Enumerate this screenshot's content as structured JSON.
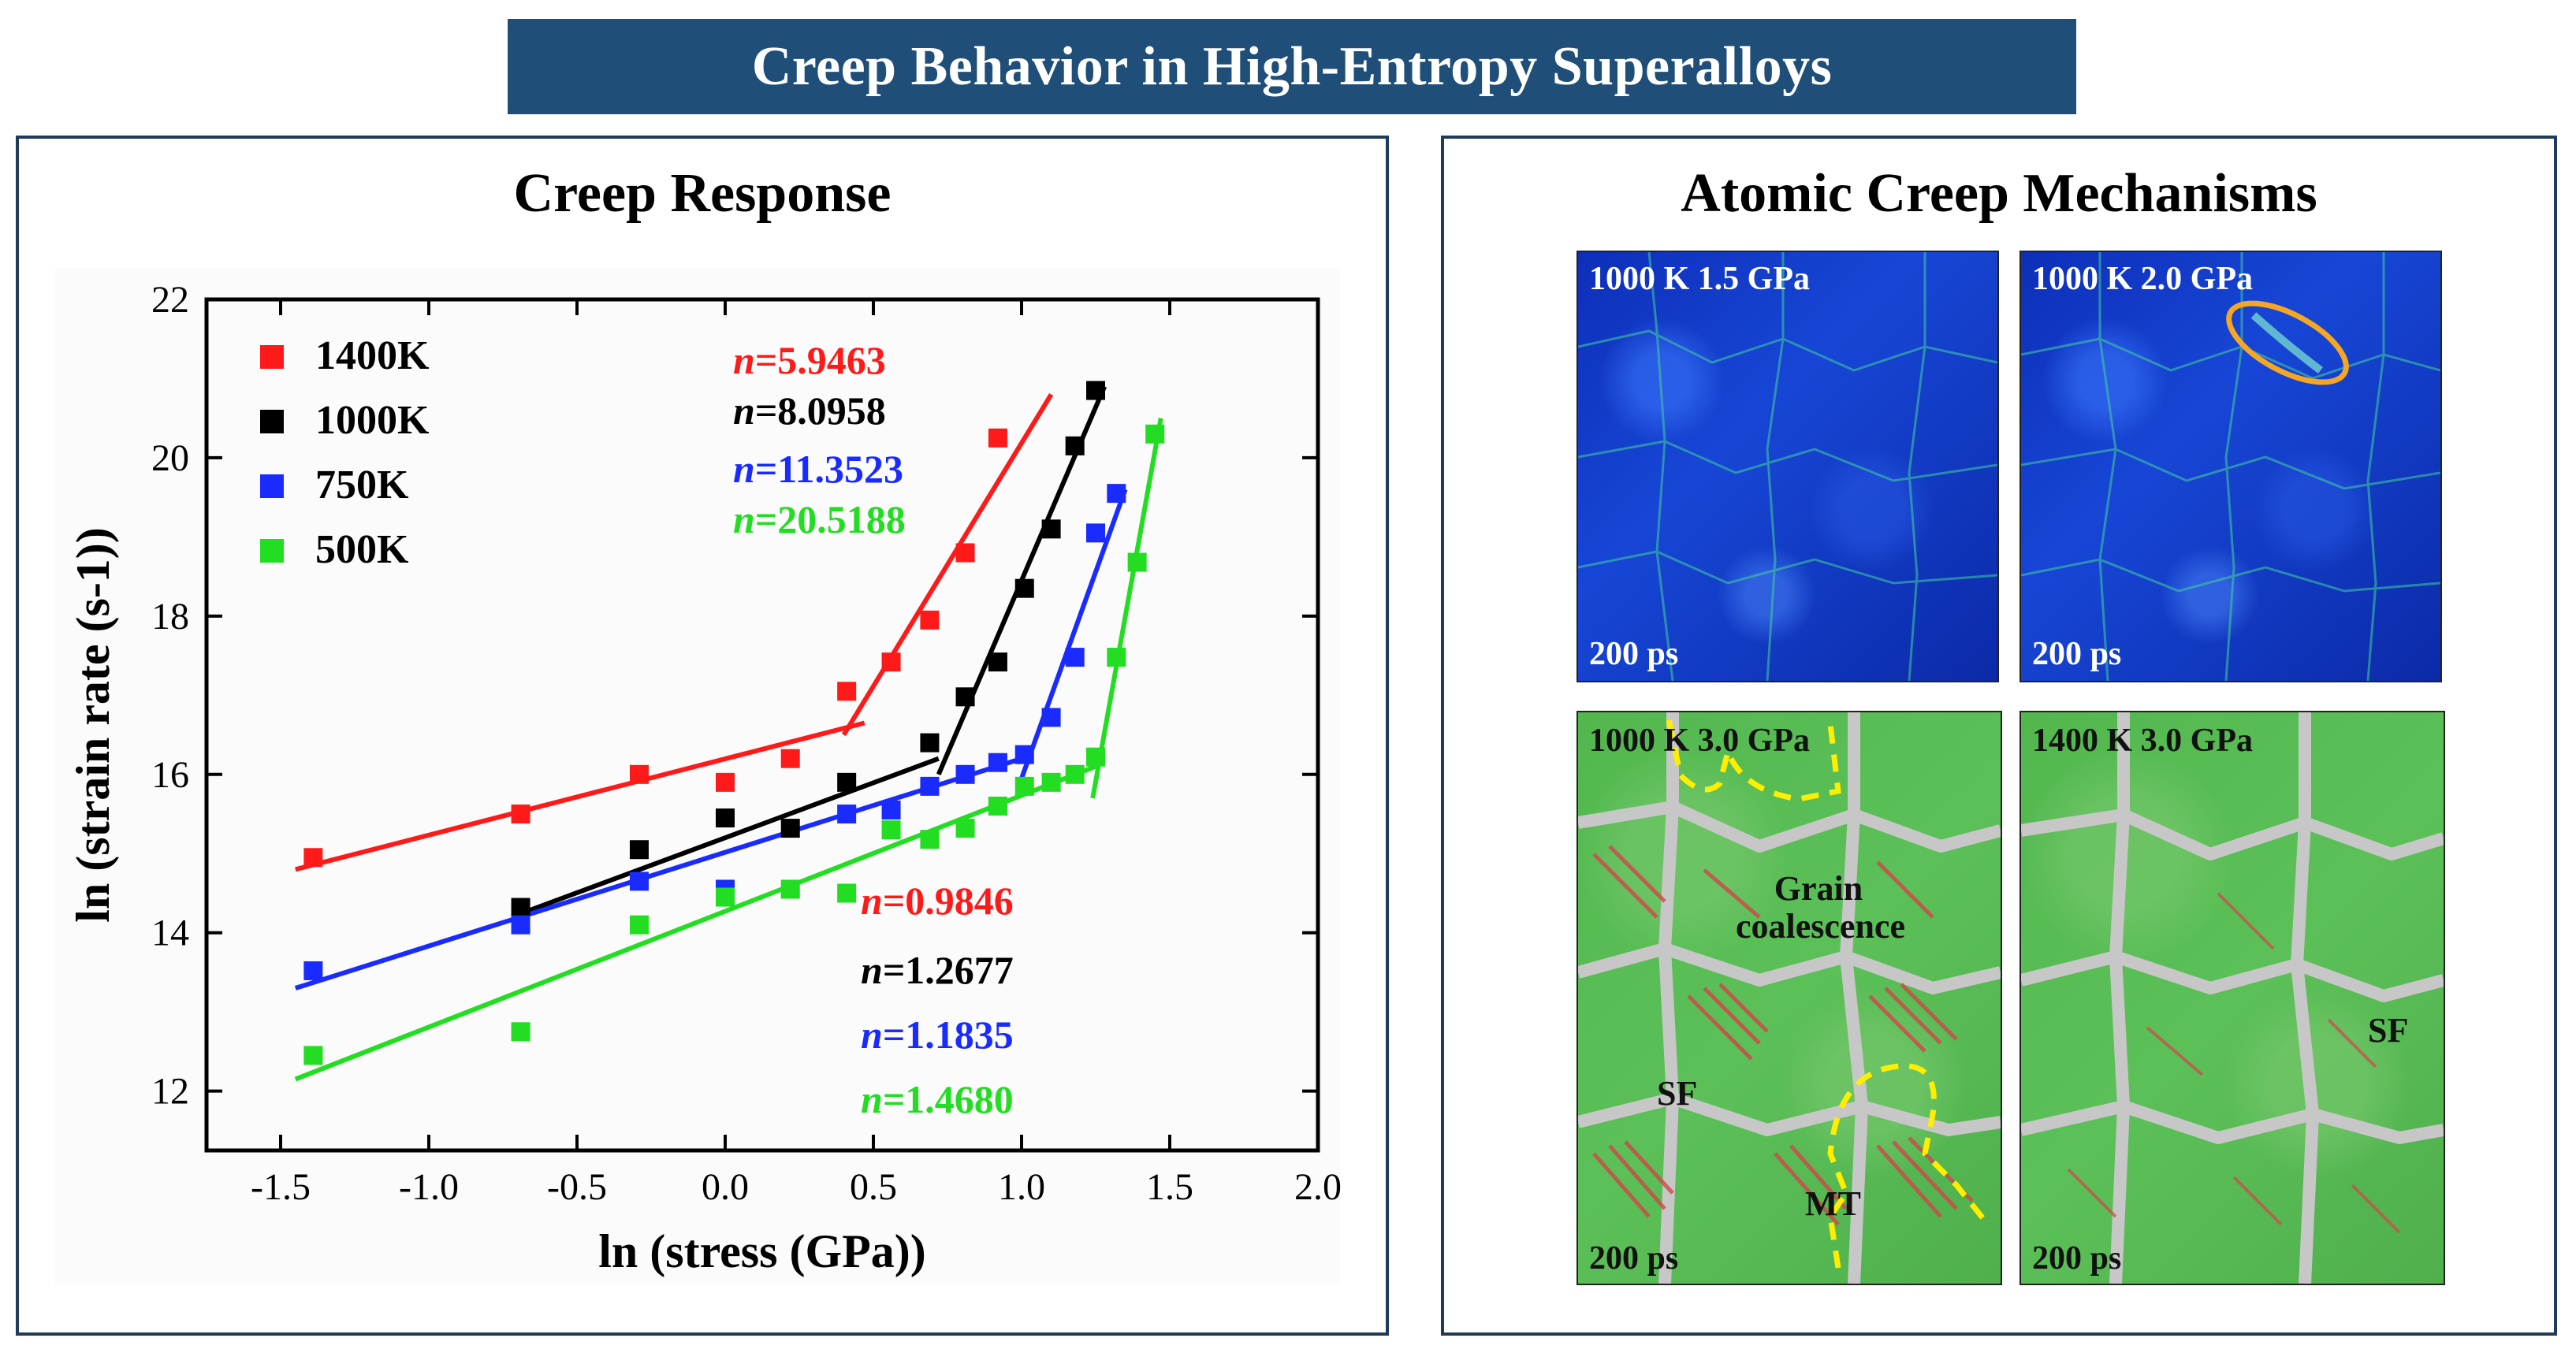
{
  "banner": {
    "title": "Creep Behavior in High-Entropy Superalloys"
  },
  "left_panel": {
    "title": "Creep Response"
  },
  "right_panel": {
    "title": "Atomic Creep Mechanisms",
    "images": [
      {
        "condition": "1000 K 1.5 GPa",
        "time": "200 ps",
        "style": "blue"
      },
      {
        "condition": "1000 K 2.0 GPa",
        "time": "200 ps",
        "style": "blue"
      },
      {
        "condition": "1000 K 3.0 GPa",
        "time": "200 ps",
        "style": "green"
      },
      {
        "condition": "1400 K 3.0 GPa",
        "time": "200 ps",
        "style": "green"
      }
    ],
    "annotations": {
      "grain_coalescence": "Grain coalescence",
      "sf_left": "SF",
      "mt": "MT",
      "sf_right": "SF"
    }
  },
  "colors": {
    "banner_bg": "#1f4e79",
    "red": "#ff1a1a",
    "black": "#000000",
    "blue": "#1a2bff",
    "green": "#22dd22",
    "highlight": "#f5a623",
    "dashed": "#ffee00"
  },
  "chart_data": {
    "type": "scatter",
    "title": "Creep Response",
    "xlabel": "ln (stress (GPa))",
    "ylabel": "ln (strain rate (s-1))",
    "xlim": [
      -1.75,
      2.0
    ],
    "ylim": [
      11.25,
      22.0
    ],
    "xticks": [
      -1.5,
      -1.0,
      -0.5,
      0.0,
      0.5,
      1.0,
      1.5,
      2.0
    ],
    "xtick_labels": [
      "-1.5",
      "-1.0",
      "-0.5",
      "0.0",
      "0.5",
      "1.0",
      "1.5",
      "2.0"
    ],
    "yticks": [
      12,
      14,
      16,
      18,
      20,
      22
    ],
    "ytick_labels": [
      "12",
      "14",
      "16",
      "18",
      "20",
      "22"
    ],
    "legend_position": "top-left",
    "series": [
      {
        "name": "1400K",
        "color": "#ff1a1a",
        "points": [
          [
            -1.39,
            14.95
          ],
          [
            -0.69,
            15.5
          ],
          [
            -0.29,
            16.0
          ],
          [
            0.0,
            15.9
          ],
          [
            0.22,
            16.2
          ],
          [
            0.41,
            17.05
          ],
          [
            0.56,
            17.42
          ],
          [
            0.69,
            17.95
          ],
          [
            0.81,
            18.8
          ],
          [
            0.92,
            20.25
          ]
        ],
        "fits": [
          {
            "n": "0.9846",
            "x": [
              -1.45,
              0.47
            ],
            "y": [
              14.8,
              16.65
            ]
          },
          {
            "n": "5.9463",
            "x": [
              0.4,
              1.1
            ],
            "y": [
              16.5,
              20.8
            ]
          }
        ]
      },
      {
        "name": "1000K",
        "color": "#000000",
        "points": [
          [
            -0.69,
            14.32
          ],
          [
            -0.29,
            15.05
          ],
          [
            0.0,
            15.45
          ],
          [
            0.22,
            15.32
          ],
          [
            0.41,
            15.9
          ],
          [
            0.69,
            16.4
          ],
          [
            0.81,
            16.98
          ],
          [
            0.92,
            17.42
          ],
          [
            1.01,
            18.35
          ],
          [
            1.1,
            19.1
          ],
          [
            1.18,
            20.15
          ],
          [
            1.25,
            20.85
          ]
        ],
        "fits": [
          {
            "n": "1.2677",
            "x": [
              -0.72,
              0.72
            ],
            "y": [
              14.2,
              16.2
            ]
          },
          {
            "n": "8.0958",
            "x": [
              0.72,
              1.28
            ],
            "y": [
              16.0,
              20.9
            ]
          }
        ]
      },
      {
        "name": "750K",
        "color": "#1a2bff",
        "points": [
          [
            -1.39,
            13.52
          ],
          [
            -0.69,
            14.1
          ],
          [
            -0.29,
            14.65
          ],
          [
            0.0,
            14.55
          ],
          [
            0.41,
            15.5
          ],
          [
            0.56,
            15.55
          ],
          [
            0.69,
            15.85
          ],
          [
            0.81,
            16.0
          ],
          [
            0.92,
            16.15
          ],
          [
            1.01,
            16.25
          ],
          [
            1.1,
            16.72
          ],
          [
            1.18,
            17.48
          ],
          [
            1.25,
            19.05
          ],
          [
            1.32,
            19.55
          ]
        ],
        "fits": [
          {
            "n": "1.1835",
            "x": [
              -1.45,
              1.0
            ],
            "y": [
              13.3,
              16.2
            ]
          },
          {
            "n": "11.3523",
            "x": [
              1.0,
              1.35
            ],
            "y": [
              15.95,
              19.6
            ]
          }
        ]
      },
      {
        "name": "500K",
        "color": "#22dd22",
        "points": [
          [
            -1.39,
            12.45
          ],
          [
            -0.69,
            12.75
          ],
          [
            -0.29,
            14.1
          ],
          [
            0.0,
            14.45
          ],
          [
            0.22,
            14.55
          ],
          [
            0.41,
            14.5
          ],
          [
            0.56,
            15.3
          ],
          [
            0.69,
            15.18
          ],
          [
            0.81,
            15.32
          ],
          [
            0.92,
            15.6
          ],
          [
            1.01,
            15.85
          ],
          [
            1.1,
            15.9
          ],
          [
            1.18,
            16.0
          ],
          [
            1.25,
            16.22
          ],
          [
            1.32,
            17.48
          ],
          [
            1.39,
            18.68
          ],
          [
            1.45,
            20.3
          ]
        ],
        "fits": [
          {
            "n": "1.4680",
            "x": [
              -1.45,
              1.25
            ],
            "y": [
              12.15,
              16.1
            ]
          },
          {
            "n": "20.5188",
            "x": [
              1.24,
              1.47
            ],
            "y": [
              15.7,
              20.5
            ]
          }
        ]
      }
    ],
    "n_labels_high": [
      {
        "text": "n=5.9463",
        "color": "#ff1a1a"
      },
      {
        "text": "n=8.0958",
        "color": "#000000"
      },
      {
        "text": "n=11.3523",
        "color": "#1a2bff"
      },
      {
        "text": "n=20.5188",
        "color": "#22dd22"
      }
    ],
    "n_labels_low": [
      {
        "text": "n=0.9846",
        "color": "#ff1a1a"
      },
      {
        "text": "n=1.2677",
        "color": "#000000"
      },
      {
        "text": "n=1.1835",
        "color": "#1a2bff"
      },
      {
        "text": "n=1.4680",
        "color": "#22dd22"
      }
    ]
  }
}
